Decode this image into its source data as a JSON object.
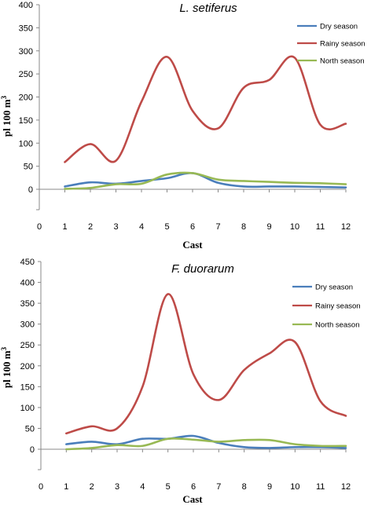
{
  "chart_data": [
    {
      "type": "line",
      "title": "L. setiferus",
      "xlabel": "Cast",
      "ylabel": "pl 100 m",
      "ylabel_sup": "3",
      "xlim": [
        0,
        12
      ],
      "ylim": [
        0,
        400
      ],
      "yticks": [
        0,
        50,
        100,
        150,
        200,
        250,
        300,
        350,
        400
      ],
      "xticks": [
        0,
        1,
        2,
        3,
        4,
        5,
        6,
        7,
        8,
        9,
        10,
        11,
        12
      ],
      "x": [
        1,
        2,
        3,
        4,
        5,
        6,
        7,
        8,
        9,
        10,
        11,
        12
      ],
      "legend_position": "top-right",
      "grid": false,
      "series": [
        {
          "name": "Dry season",
          "color": "#4a7ebb",
          "values": [
            6,
            15,
            12,
            18,
            24,
            35,
            14,
            6,
            6,
            6,
            5,
            4
          ]
        },
        {
          "name": "Rainy season",
          "color": "#be4b48",
          "values": [
            59,
            98,
            62,
            190,
            287,
            170,
            132,
            220,
            237,
            285,
            140,
            142
          ]
        },
        {
          "name": "North season",
          "color": "#98b954",
          "values": [
            1,
            3,
            11,
            12,
            32,
            35,
            21,
            18,
            16,
            14,
            13,
            11
          ]
        }
      ]
    },
    {
      "type": "line",
      "title": "F. duorarum",
      "xlabel": "Cast",
      "ylabel": "pl 100 m",
      "ylabel_sup": "3",
      "xlim": [
        0,
        12
      ],
      "ylim": [
        0,
        450
      ],
      "yticks": [
        0,
        50,
        100,
        150,
        200,
        250,
        300,
        350,
        400,
        450
      ],
      "xticks": [
        0,
        1,
        2,
        3,
        4,
        5,
        6,
        7,
        8,
        9,
        10,
        11,
        12
      ],
      "x": [
        1,
        2,
        3,
        4,
        5,
        6,
        7,
        8,
        9,
        10,
        11,
        12
      ],
      "legend_position": "top-right",
      "grid": false,
      "series": [
        {
          "name": "Dry season",
          "color": "#4a7ebb",
          "values": [
            12,
            18,
            12,
            25,
            25,
            32,
            15,
            5,
            3,
            5,
            5,
            3
          ]
        },
        {
          "name": "Rainy season",
          "color": "#be4b48",
          "values": [
            38,
            55,
            50,
            150,
            372,
            180,
            118,
            190,
            230,
            257,
            115,
            80
          ]
        },
        {
          "name": "North season",
          "color": "#98b954",
          "values": [
            0,
            3,
            10,
            8,
            25,
            23,
            18,
            22,
            22,
            12,
            8,
            8
          ]
        }
      ]
    }
  ]
}
